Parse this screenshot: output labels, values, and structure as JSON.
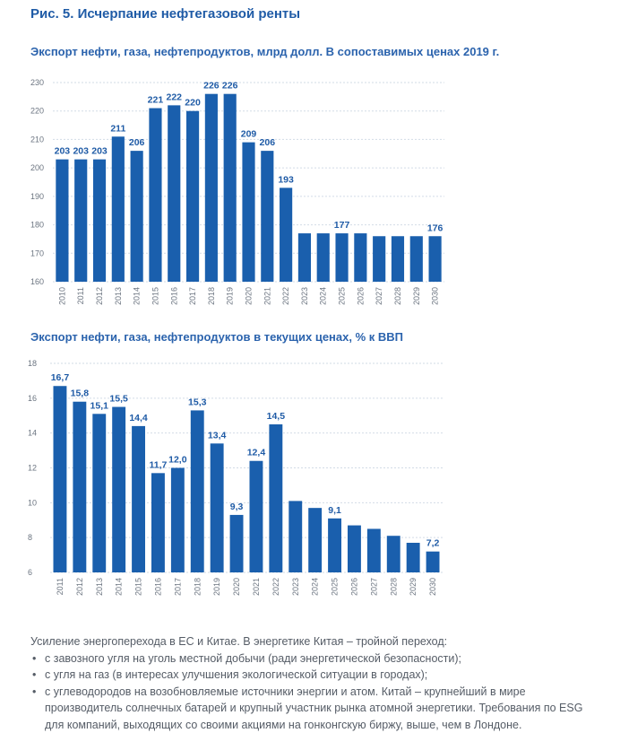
{
  "figure_title": "Рис. 5. Исчерпание нефтегазовой ренты",
  "chart_data": [
    {
      "type": "bar",
      "title": "Экспорт нефти, газа, нефтепродуктов, млрд долл. В сопоставимых ценах 2019 г.",
      "categories": [
        "2010",
        "2011",
        "2012",
        "2013",
        "2014",
        "2015",
        "2016",
        "2017",
        "2018",
        "2019",
        "2020",
        "2021",
        "2022",
        "2023",
        "2024",
        "2025",
        "2026",
        "2027",
        "2028",
        "2029",
        "2030"
      ],
      "values": [
        203,
        203,
        203,
        211,
        206,
        221,
        222,
        220,
        226,
        226,
        209,
        206,
        193,
        177,
        177,
        177,
        177,
        176,
        176,
        176,
        176
      ],
      "data_labels": [
        "203",
        "203",
        "203",
        "211",
        "206",
        "221",
        "222",
        "220",
        "226",
        "226",
        "209",
        "206",
        "193",
        "",
        "",
        "177",
        "",
        "",
        "",
        "",
        "176"
      ],
      "ylim": [
        160,
        230
      ],
      "yticks": [
        "160",
        "170",
        "180",
        "190",
        "200",
        "210",
        "220",
        "230"
      ],
      "grid": true,
      "color": "#1a5fad"
    },
    {
      "type": "bar",
      "title": "Экспорт нефти, газа, нефтепродуктов в текущих ценах, % к ВВП",
      "categories": [
        "2011",
        "2012",
        "2013",
        "2014",
        "2015",
        "2016",
        "2017",
        "2018",
        "2019",
        "2020",
        "2021",
        "2022",
        "2023",
        "2024",
        "2025",
        "2026",
        "2027",
        "2028",
        "2029",
        "2030"
      ],
      "values": [
        16.7,
        15.8,
        15.1,
        15.5,
        14.4,
        11.7,
        12.0,
        15.3,
        13.4,
        9.3,
        12.4,
        14.5,
        10.1,
        9.7,
        9.1,
        8.7,
        8.5,
        8.1,
        7.7,
        7.2
      ],
      "data_labels": [
        "16,7",
        "15,8",
        "15,1",
        "15,5",
        "14,4",
        "11,7",
        "12,0",
        "15,3",
        "13,4",
        "9,3",
        "12,4",
        "14,5",
        "",
        "",
        "9,1",
        "",
        "",
        "",
        "",
        "7,2"
      ],
      "ylim": [
        6,
        18
      ],
      "yticks": [
        "6",
        "8",
        "10",
        "12",
        "14",
        "16",
        "18"
      ],
      "grid": true,
      "color": "#1a5fad"
    }
  ],
  "footer": {
    "intro": "Усиление энергоперехода в ЕС и Китае. В энергетике Китая – тройной переход:",
    "bullets": [
      "с завозного угля на уголь местной добычи (ради энергетической безопасности);",
      "с угля на газ (в интересах улучшения экологической ситуации в городах);",
      "с углеводородов на возобновляемые источники энергии и атом. Китай – крупнейший в мире производитель солнечных батарей и крупный участник рынка атомной энергетики. Требования по ESG для компаний, выходящих со своими акциями на гонконгскую биржу, выше, чем в Лондоне."
    ]
  }
}
